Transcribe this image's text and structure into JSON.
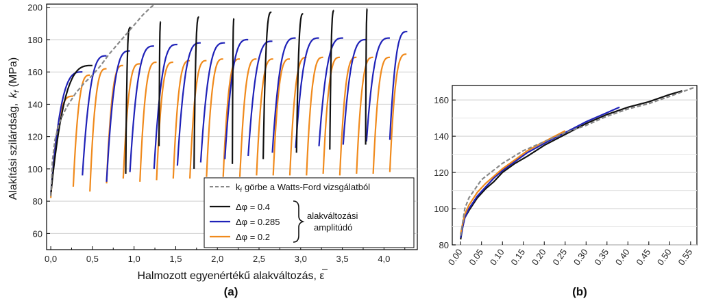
{
  "chart_data": [
    {
      "type": "line",
      "panel_label": "(a)",
      "xlabel": "Halmozott egyenértékű alakváltozás, ε",
      "ylabel": "Alakítási szilárdság, k_f (MPa)",
      "ylabel_prefix": "Alakítási szilárdság,",
      "ylabel_symbol": "k",
      "ylabel_sub": "f",
      "ylabel_unit": "(MPa)",
      "xlim": [
        -0.05,
        4.4
      ],
      "ylim": [
        50,
        202
      ],
      "x_ticks": [
        "0,0",
        "0,5",
        "1,0",
        "1,5",
        "2,0",
        "2,5",
        "3,0",
        "3,5",
        "4,0"
      ],
      "x_tick_values": [
        0,
        0.5,
        1.0,
        1.5,
        2.0,
        2.5,
        3.0,
        3.5,
        4.0
      ],
      "y_ticks": [
        "60",
        "80",
        "100",
        "120",
        "140",
        "160",
        "180",
        "200"
      ],
      "y_tick_values": [
        60,
        80,
        100,
        120,
        140,
        160,
        180,
        200
      ],
      "grid": true,
      "legend": {
        "placement": "bottom-right",
        "reference_label_prefix": "k",
        "reference_label_sub": "f",
        "reference_label_suffix": "görbe a Watts-Ford vizsgálatból",
        "entries": [
          "Δφ = 0.4",
          "Δφ = 0.285",
          "Δφ = 0.2"
        ],
        "brace_text": [
          "alakváltozási",
          "amplitúdó"
        ]
      },
      "colors": {
        "black": "#111111",
        "blue": "#1f22b8",
        "orange": "#f08a1c",
        "reference": "#888888"
      },
      "reference_curve": {
        "name": "kf görbe a Watts-Ford vizsgálatból",
        "x": [
          0.0,
          0.02,
          0.05,
          0.1,
          0.15,
          0.2,
          0.3,
          0.4,
          0.5,
          0.6,
          0.7,
          0.8,
          0.9,
          1.0,
          1.1,
          1.2,
          1.25
        ],
        "y": [
          83,
          105,
          118,
          128,
          134,
          139,
          147,
          153,
          158,
          164,
          171,
          177,
          183,
          189,
          195,
          200,
          202
        ]
      },
      "series": [
        {
          "name": "Δφ = 0.4",
          "color": "#111111",
          "start_x": [
            0.0,
            0.9,
            1.3,
            1.72,
            2.18,
            2.55,
            2.95,
            3.35,
            3.78
          ],
          "start_y": [
            84,
            97,
            114,
            100,
            103,
            106,
            110,
            112,
            115
          ],
          "end_x": [
            0.5,
            0.95,
            1.32,
            1.78,
            2.2,
            2.65,
            3.03,
            3.4,
            3.8
          ],
          "end_y": [
            164,
            187,
            191,
            194,
            193,
            197,
            196,
            198,
            199
          ],
          "first_pass_peak": {
            "x": 0.95,
            "y": 188
          }
        },
        {
          "name": "Δφ = 0.285",
          "color": "#1f22b8",
          "start_x": [
            0.0,
            0.38,
            0.67,
            0.95,
            1.24,
            1.52,
            1.8,
            2.09,
            2.37,
            2.66,
            2.94,
            3.22,
            3.51,
            3.79,
            4.07
          ],
          "start_y": [
            84,
            96,
            92,
            98,
            100,
            102,
            104,
            106,
            108,
            110,
            113,
            114,
            115,
            117,
            118
          ],
          "end_x": [
            0.38,
            0.67,
            0.95,
            1.24,
            1.52,
            1.8,
            2.09,
            2.37,
            2.66,
            2.94,
            3.22,
            3.51,
            3.79,
            4.07,
            4.28
          ],
          "end_y": [
            160,
            170,
            173,
            176,
            177,
            178,
            178,
            180,
            179,
            181,
            181,
            181,
            180,
            181,
            185
          ]
        },
        {
          "name": "Δφ = 0.2",
          "color": "#f08a1c",
          "start_x": [
            0.0,
            0.27,
            0.47,
            0.67,
            0.87,
            1.07,
            1.27,
            1.47,
            1.67,
            1.87,
            2.07,
            2.27,
            2.47,
            2.67,
            2.87,
            3.07,
            3.27,
            3.47,
            3.67,
            3.87,
            4.07
          ],
          "start_y": [
            82,
            89,
            86,
            91,
            94,
            92,
            93,
            94,
            94,
            95,
            95,
            95,
            96,
            96,
            96,
            96,
            97,
            96,
            97,
            97,
            98
          ],
          "end_x": [
            0.27,
            0.47,
            0.67,
            0.87,
            1.07,
            1.27,
            1.47,
            1.67,
            1.87,
            2.07,
            2.27,
            2.47,
            2.67,
            2.87,
            3.07,
            3.27,
            3.47,
            3.67,
            3.87,
            4.07,
            4.27
          ],
          "end_y": [
            145,
            158,
            162,
            164,
            165,
            166,
            166,
            167,
            167,
            168,
            168,
            168,
            168,
            168,
            169,
            169,
            169,
            169,
            169,
            169,
            171
          ]
        }
      ]
    },
    {
      "type": "line",
      "panel_label": "(b)",
      "xlim": [
        -0.02,
        0.565
      ],
      "ylim": [
        80,
        168
      ],
      "x_ticks": [
        "0.00",
        "0.05",
        "0.10",
        "0.15",
        "0.20",
        "0.25",
        "0.30",
        "0.35",
        "0.40",
        "0.45",
        "0.50",
        "0.55"
      ],
      "x_tick_values": [
        0.0,
        0.05,
        0.1,
        0.15,
        0.2,
        0.25,
        0.3,
        0.35,
        0.4,
        0.45,
        0.5,
        0.55
      ],
      "y_ticks": [
        "80",
        "100",
        "120",
        "140",
        "160"
      ],
      "y_tick_values": [
        80,
        100,
        120,
        140,
        160
      ],
      "grid": true,
      "reference_curve": {
        "x": [
          0.0,
          0.01,
          0.02,
          0.05,
          0.1,
          0.15,
          0.2,
          0.25,
          0.3,
          0.35,
          0.4,
          0.45,
          0.5,
          0.56
        ],
        "y": [
          85,
          100,
          106,
          116,
          125,
          132,
          137,
          142,
          146,
          151,
          155,
          158,
          162,
          167
        ]
      },
      "series": [
        {
          "name": "Δφ = 0.4",
          "color": "#111111",
          "x": [
            0.0,
            0.005,
            0.01,
            0.02,
            0.04,
            0.06,
            0.08,
            0.1,
            0.13,
            0.16,
            0.2,
            0.25,
            0.3,
            0.35,
            0.4,
            0.45,
            0.5,
            0.53
          ],
          "y": [
            83,
            90,
            95,
            99,
            106,
            111,
            115,
            120,
            125,
            129,
            135,
            141,
            147,
            152,
            156,
            159,
            163,
            165
          ]
        },
        {
          "name": "Δφ = 0.285",
          "color": "#1f22b8",
          "x": [
            0.0,
            0.005,
            0.01,
            0.02,
            0.04,
            0.06,
            0.08,
            0.1,
            0.13,
            0.16,
            0.2,
            0.25,
            0.3,
            0.35,
            0.38
          ],
          "y": [
            84,
            90,
            95,
            100,
            107,
            112,
            117,
            121,
            126,
            131,
            136,
            142,
            148,
            153,
            156
          ]
        },
        {
          "name": "Δφ = 0.2",
          "color": "#f08a1c",
          "x": [
            0.0,
            0.005,
            0.01,
            0.02,
            0.04,
            0.06,
            0.08,
            0.1,
            0.13,
            0.16,
            0.2,
            0.25
          ],
          "y": [
            86,
            92,
            97,
            102,
            109,
            114,
            118,
            122,
            127,
            132,
            137,
            143
          ]
        }
      ]
    }
  ]
}
